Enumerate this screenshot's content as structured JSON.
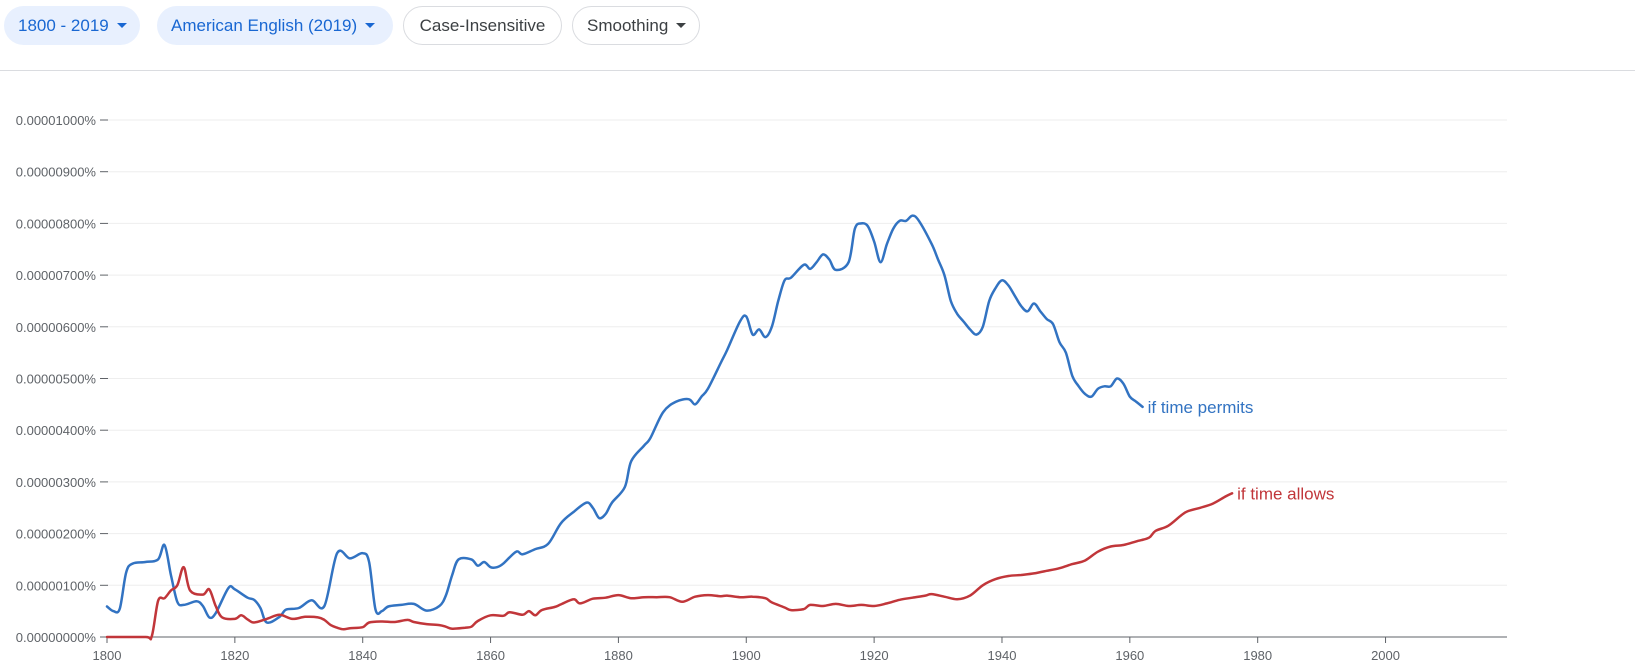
{
  "toolbar": {
    "year_range": "1800 - 2019",
    "corpus": "American English (2019)",
    "case": "Case-Insensitive",
    "smoothing": "Smoothing"
  },
  "chart_data": {
    "type": "line",
    "title": "",
    "xlabel": "",
    "ylabel": "",
    "xlim": [
      1800,
      2019
    ],
    "ylim": [
      0,
      1e-05
    ],
    "x_ticks": [
      1800,
      1820,
      1840,
      1860,
      1880,
      1900,
      1920,
      1940,
      1960,
      1980,
      2000
    ],
    "y_ticks": [
      {
        "value": 0,
        "label": "0.00000000%"
      },
      {
        "value": 1e-06,
        "label": "0.00000100%"
      },
      {
        "value": 2e-06,
        "label": "0.00000200%"
      },
      {
        "value": 3e-06,
        "label": "0.00000300%"
      },
      {
        "value": 4e-06,
        "label": "0.00000400%"
      },
      {
        "value": 5e-06,
        "label": "0.00000500%"
      },
      {
        "value": 6e-06,
        "label": "0.00000600%"
      },
      {
        "value": 7e-06,
        "label": "0.00000700%"
      },
      {
        "value": 8e-06,
        "label": "0.00000800%"
      },
      {
        "value": 9e-06,
        "label": "0.00000900%"
      },
      {
        "value": 1e-05,
        "label": "0.00001000%"
      }
    ],
    "legend_placement": "right-end-of-lines",
    "series": [
      {
        "name": "if time permits",
        "color": "#3273c2",
        "points": [
          [
            1800,
            5.9e-07
          ],
          [
            1801,
            5e-07
          ],
          [
            1802,
            5.5e-07
          ],
          [
            1803,
            1.25e-06
          ],
          [
            1804,
            1.42e-06
          ],
          [
            1806,
            1.45e-06
          ],
          [
            1808,
            1.5e-06
          ],
          [
            1809,
            1.78e-06
          ],
          [
            1810,
            1.2e-06
          ],
          [
            1811,
            6.8e-07
          ],
          [
            1812,
            6.2e-07
          ],
          [
            1814,
            6.9e-07
          ],
          [
            1815,
            6e-07
          ],
          [
            1816,
            3.8e-07
          ],
          [
            1817,
            4.6e-07
          ],
          [
            1819,
            9.5e-07
          ],
          [
            1820,
            9.2e-07
          ],
          [
            1822,
            7.6e-07
          ],
          [
            1823,
            7.2e-07
          ],
          [
            1824,
            5.6e-07
          ],
          [
            1825,
            2.8e-07
          ],
          [
            1827,
            3.9e-07
          ],
          [
            1828,
            5.3e-07
          ],
          [
            1830,
            5.6e-07
          ],
          [
            1832,
            7.1e-07
          ],
          [
            1834,
            6e-07
          ],
          [
            1836,
            1.62e-06
          ],
          [
            1838,
            1.52e-06
          ],
          [
            1840,
            1.62e-06
          ],
          [
            1841,
            1.45e-06
          ],
          [
            1842,
            5.3e-07
          ],
          [
            1843,
            5e-07
          ],
          [
            1844,
            5.9e-07
          ],
          [
            1846,
            6.2e-07
          ],
          [
            1848,
            6.4e-07
          ],
          [
            1850,
            5.1e-07
          ],
          [
            1852,
            6e-07
          ],
          [
            1853,
            8e-07
          ],
          [
            1854,
            1.2e-06
          ],
          [
            1855,
            1.5e-06
          ],
          [
            1857,
            1.5e-06
          ],
          [
            1858,
            1.38e-06
          ],
          [
            1859,
            1.45e-06
          ],
          [
            1860,
            1.35e-06
          ],
          [
            1861,
            1.35e-06
          ],
          [
            1862,
            1.42e-06
          ],
          [
            1864,
            1.65e-06
          ],
          [
            1865,
            1.6e-06
          ],
          [
            1867,
            1.7e-06
          ],
          [
            1869,
            1.8e-06
          ],
          [
            1871,
            2.2e-06
          ],
          [
            1873,
            2.42e-06
          ],
          [
            1875,
            2.6e-06
          ],
          [
            1876,
            2.5e-06
          ],
          [
            1877,
            2.3e-06
          ],
          [
            1878,
            2.38e-06
          ],
          [
            1879,
            2.6e-06
          ],
          [
            1881,
            2.9e-06
          ],
          [
            1882,
            3.4e-06
          ],
          [
            1884,
            3.7e-06
          ],
          [
            1885,
            3.85e-06
          ],
          [
            1887,
            4.35e-06
          ],
          [
            1889,
            4.55e-06
          ],
          [
            1891,
            4.6e-06
          ],
          [
            1892,
            4.5e-06
          ],
          [
            1893,
            4.65e-06
          ],
          [
            1894,
            4.8e-06
          ],
          [
            1896,
            5.3e-06
          ],
          [
            1897,
            5.55e-06
          ],
          [
            1899,
            6.1e-06
          ],
          [
            1900,
            6.2e-06
          ],
          [
            1901,
            5.85e-06
          ],
          [
            1902,
            5.95e-06
          ],
          [
            1903,
            5.8e-06
          ],
          [
            1904,
            6e-06
          ],
          [
            1905,
            6.5e-06
          ],
          [
            1906,
            6.9e-06
          ],
          [
            1907,
            6.95e-06
          ],
          [
            1909,
            7.2e-06
          ],
          [
            1910,
            7.12e-06
          ],
          [
            1911,
            7.25e-06
          ],
          [
            1912,
            7.4e-06
          ],
          [
            1913,
            7.3e-06
          ],
          [
            1914,
            7.1e-06
          ],
          [
            1916,
            7.25e-06
          ],
          [
            1917,
            7.9e-06
          ],
          [
            1918,
            8e-06
          ],
          [
            1919,
            7.95e-06
          ],
          [
            1920,
            7.65e-06
          ],
          [
            1921,
            7.25e-06
          ],
          [
            1922,
            7.6e-06
          ],
          [
            1923,
            7.9e-06
          ],
          [
            1924,
            8.05e-06
          ],
          [
            1925,
            8.05e-06
          ],
          [
            1926,
            8.15e-06
          ],
          [
            1927,
            8.05e-06
          ],
          [
            1929,
            7.6e-06
          ],
          [
            1930,
            7.3e-06
          ],
          [
            1931,
            7e-06
          ],
          [
            1932,
            6.5e-06
          ],
          [
            1933,
            6.25e-06
          ],
          [
            1934,
            6.1e-06
          ],
          [
            1935,
            5.95e-06
          ],
          [
            1936,
            5.85e-06
          ],
          [
            1937,
            6e-06
          ],
          [
            1938,
            6.5e-06
          ],
          [
            1939,
            6.75e-06
          ],
          [
            1940,
            6.9e-06
          ],
          [
            1941,
            6.8e-06
          ],
          [
            1942,
            6.6e-06
          ],
          [
            1943,
            6.4e-06
          ],
          [
            1944,
            6.3e-06
          ],
          [
            1945,
            6.45e-06
          ],
          [
            1946,
            6.3e-06
          ],
          [
            1947,
            6.15e-06
          ],
          [
            1948,
            6.05e-06
          ],
          [
            1949,
            5.7e-06
          ],
          [
            1950,
            5.5e-06
          ],
          [
            1951,
            5.05e-06
          ],
          [
            1952,
            4.85e-06
          ],
          [
            1953,
            4.7e-06
          ],
          [
            1954,
            4.65e-06
          ],
          [
            1955,
            4.8e-06
          ],
          [
            1956,
            4.85e-06
          ],
          [
            1957,
            4.85e-06
          ],
          [
            1958,
            5e-06
          ],
          [
            1959,
            4.9e-06
          ],
          [
            1960,
            4.65e-06
          ],
          [
            1961,
            4.55e-06
          ],
          [
            1962,
            4.45e-06
          ]
        ]
      },
      {
        "name": "if time allows",
        "color": "#c1363a",
        "points": [
          [
            1800,
            0
          ],
          [
            1806,
            0
          ],
          [
            1807,
            1e-08
          ],
          [
            1808,
            7e-07
          ],
          [
            1809,
            7.5e-07
          ],
          [
            1810,
            9e-07
          ],
          [
            1811,
            1e-06
          ],
          [
            1812,
            1.35e-06
          ],
          [
            1813,
            9e-07
          ],
          [
            1815,
            8.2e-07
          ],
          [
            1816,
            9.2e-07
          ],
          [
            1817,
            6e-07
          ],
          [
            1818,
            3.8e-07
          ],
          [
            1820,
            3.5e-07
          ],
          [
            1821,
            4.2e-07
          ],
          [
            1822,
            3.4e-07
          ],
          [
            1823,
            2.8e-07
          ],
          [
            1825,
            3.5e-07
          ],
          [
            1827,
            4.3e-07
          ],
          [
            1829,
            3.5e-07
          ],
          [
            1831,
            3.9e-07
          ],
          [
            1833,
            3.8e-07
          ],
          [
            1834,
            3.3e-07
          ],
          [
            1835,
            2.3e-07
          ],
          [
            1836,
            1.8e-07
          ],
          [
            1837,
            1.5e-07
          ],
          [
            1838,
            1.7e-07
          ],
          [
            1840,
            1.9e-07
          ],
          [
            1841,
            2.8e-07
          ],
          [
            1843,
            3e-07
          ],
          [
            1845,
            2.9e-07
          ],
          [
            1847,
            3.3e-07
          ],
          [
            1848,
            2.9e-07
          ],
          [
            1850,
            2.5e-07
          ],
          [
            1852,
            2.3e-07
          ],
          [
            1853,
            2e-07
          ],
          [
            1854,
            1.6e-07
          ],
          [
            1856,
            1.8e-07
          ],
          [
            1857,
            2e-07
          ],
          [
            1858,
            3.1e-07
          ],
          [
            1860,
            4.2e-07
          ],
          [
            1862,
            4.1e-07
          ],
          [
            1863,
            4.8e-07
          ],
          [
            1865,
            4.3e-07
          ],
          [
            1866,
            5e-07
          ],
          [
            1867,
            4.2e-07
          ],
          [
            1868,
            5.2e-07
          ],
          [
            1870,
            5.8e-07
          ],
          [
            1871,
            6.3e-07
          ],
          [
            1873,
            7.3e-07
          ],
          [
            1874,
            6.5e-07
          ],
          [
            1876,
            7.4e-07
          ],
          [
            1878,
            7.6e-07
          ],
          [
            1880,
            8.1e-07
          ],
          [
            1882,
            7.5e-07
          ],
          [
            1884,
            7.7e-07
          ],
          [
            1886,
            7.7e-07
          ],
          [
            1888,
            7.7e-07
          ],
          [
            1890,
            6.8e-07
          ],
          [
            1892,
            7.8e-07
          ],
          [
            1894,
            8.1e-07
          ],
          [
            1896,
            7.9e-07
          ],
          [
            1897,
            8e-07
          ],
          [
            1899,
            7.7e-07
          ],
          [
            1901,
            7.8e-07
          ],
          [
            1903,
            7.5e-07
          ],
          [
            1904,
            6.7e-07
          ],
          [
            1906,
            5.7e-07
          ],
          [
            1907,
            5.2e-07
          ],
          [
            1909,
            5.4e-07
          ],
          [
            1910,
            6.2e-07
          ],
          [
            1912,
            6e-07
          ],
          [
            1914,
            6.4e-07
          ],
          [
            1916,
            6e-07
          ],
          [
            1918,
            6.2e-07
          ],
          [
            1920,
            6e-07
          ],
          [
            1922,
            6.5e-07
          ],
          [
            1924,
            7.2e-07
          ],
          [
            1926,
            7.6e-07
          ],
          [
            1928,
            8e-07
          ],
          [
            1929,
            8.3e-07
          ],
          [
            1931,
            7.8e-07
          ],
          [
            1933,
            7.3e-07
          ],
          [
            1935,
            8e-07
          ],
          [
            1937,
            1e-06
          ],
          [
            1939,
            1.12e-06
          ],
          [
            1941,
            1.18e-06
          ],
          [
            1943,
            1.2e-06
          ],
          [
            1945,
            1.23e-06
          ],
          [
            1947,
            1.28e-06
          ],
          [
            1949,
            1.33e-06
          ],
          [
            1951,
            1.41e-06
          ],
          [
            1953,
            1.48e-06
          ],
          [
            1955,
            1.65e-06
          ],
          [
            1957,
            1.75e-06
          ],
          [
            1959,
            1.78e-06
          ],
          [
            1961,
            1.85e-06
          ],
          [
            1963,
            1.92e-06
          ],
          [
            1964,
            2.05e-06
          ],
          [
            1966,
            2.15e-06
          ],
          [
            1968,
            2.35e-06
          ],
          [
            1969,
            2.43e-06
          ],
          [
            1971,
            2.5e-06
          ],
          [
            1973,
            2.58e-06
          ],
          [
            1975,
            2.72e-06
          ],
          [
            1976,
            2.78e-06
          ]
        ]
      }
    ]
  }
}
